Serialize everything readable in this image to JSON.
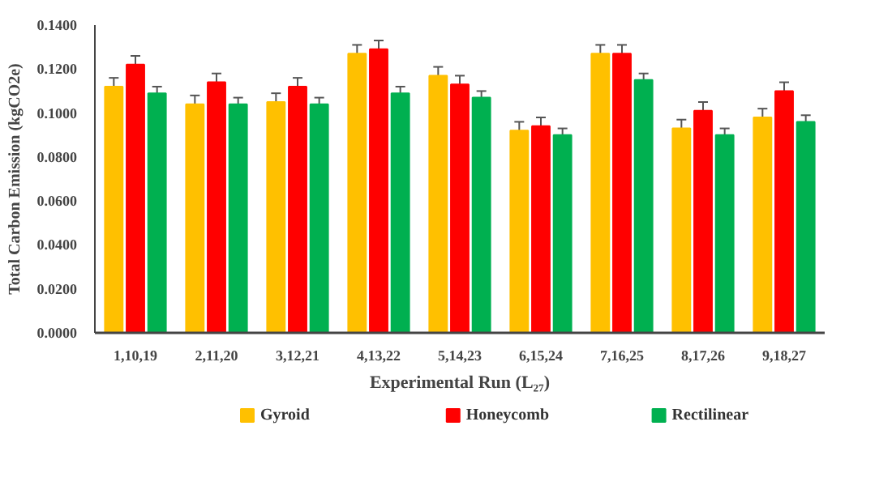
{
  "chart_data": {
    "type": "bar",
    "xlabel": "Experimental Run (L₂₇)",
    "ylabel": "Total Carbon Emission (kgCO2e)",
    "categories": [
      "1,10,19",
      "2,11,20",
      "3,12,21",
      "4,13,22",
      "5,14,23",
      "6,15,24",
      "7,16,25",
      "8,17,26",
      "9,18,27"
    ],
    "series": [
      {
        "name": "Gyroid",
        "color": "#ffc000",
        "values": [
          0.112,
          0.104,
          0.105,
          0.127,
          0.117,
          0.092,
          0.127,
          0.093,
          0.098
        ],
        "errors": [
          0.004,
          0.004,
          0.004,
          0.004,
          0.004,
          0.004,
          0.004,
          0.004,
          0.004
        ]
      },
      {
        "name": "Honeycomb",
        "color": "#ff0000",
        "values": [
          0.122,
          0.114,
          0.112,
          0.129,
          0.113,
          0.094,
          0.127,
          0.101,
          0.11
        ],
        "errors": [
          0.004,
          0.004,
          0.004,
          0.004,
          0.004,
          0.004,
          0.004,
          0.004,
          0.004
        ]
      },
      {
        "name": "Rectilinear",
        "color": "#00b050",
        "values": [
          0.109,
          0.104,
          0.104,
          0.109,
          0.107,
          0.09,
          0.115,
          0.09,
          0.096
        ],
        "errors": [
          0.003,
          0.003,
          0.003,
          0.003,
          0.003,
          0.003,
          0.003,
          0.003,
          0.003
        ]
      }
    ],
    "ylim": [
      0,
      0.14
    ],
    "yticks": [
      {
        "value": 0,
        "label": "0.0000"
      },
      {
        "value": 0.02,
        "label": "0.0200"
      },
      {
        "value": 0.04,
        "label": "0.0400"
      },
      {
        "value": 0.06,
        "label": "0.0600"
      },
      {
        "value": 0.08,
        "label": "0.0800"
      },
      {
        "value": 0.1,
        "label": "0.1000"
      },
      {
        "value": 0.12,
        "label": "0.1200"
      },
      {
        "value": 0.14,
        "label": "0.1400"
      }
    ],
    "grid": false,
    "legend": "bottom"
  }
}
